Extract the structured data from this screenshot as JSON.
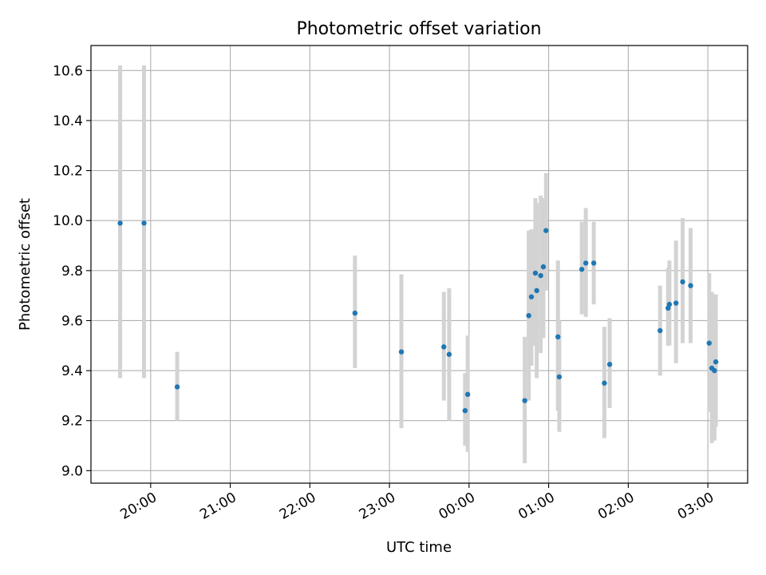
{
  "chart_data": {
    "type": "scatter",
    "title": "Photometric offset variation",
    "xlabel": "UTC time",
    "ylabel": "Photometric offset",
    "x_axis": {
      "type": "time",
      "range": [
        "19:15",
        "03:30"
      ],
      "ticks": [
        "20:00",
        "21:00",
        "22:00",
        "23:00",
        "00:00",
        "01:00",
        "02:00",
        "03:00"
      ]
    },
    "y_axis": {
      "range": [
        8.95,
        10.7
      ],
      "ticks": [
        "9.0",
        "9.2",
        "9.4",
        "9.6",
        "9.8",
        "10.0",
        "10.2",
        "10.4",
        "10.6"
      ]
    },
    "grid": true,
    "marker_color": "#1f77b4",
    "errorbar_color": "#d3d3d3",
    "points": [
      {
        "t": "19:37",
        "y": 9.99,
        "low": 9.37,
        "high": 10.62
      },
      {
        "t": "19:55",
        "y": 9.99,
        "low": 9.37,
        "high": 10.62
      },
      {
        "t": "20:20",
        "y": 9.335,
        "low": 9.2,
        "high": 9.475
      },
      {
        "t": "22:34",
        "y": 9.63,
        "low": 9.41,
        "high": 9.86
      },
      {
        "t": "23:09",
        "y": 9.475,
        "low": 9.17,
        "high": 9.785
      },
      {
        "t": "23:41",
        "y": 9.495,
        "low": 9.28,
        "high": 9.715
      },
      {
        "t": "23:45",
        "y": 9.465,
        "low": 9.2,
        "high": 9.73
      },
      {
        "t": "23:57",
        "y": 9.24,
        "low": 9.1,
        "high": 9.39
      },
      {
        "t": "23:59",
        "y": 9.305,
        "low": 9.075,
        "high": 9.54
      },
      {
        "t": "00:42",
        "y": 9.28,
        "low": 9.03,
        "high": 9.535
      },
      {
        "t": "00:45",
        "y": 9.62,
        "low": 9.28,
        "high": 9.96
      },
      {
        "t": "00:47",
        "y": 9.695,
        "low": 9.42,
        "high": 9.965
      },
      {
        "t": "00:50",
        "y": 9.79,
        "low": 9.5,
        "high": 10.09
      },
      {
        "t": "00:51",
        "y": 9.72,
        "low": 9.37,
        "high": 10.07
      },
      {
        "t": "00:54",
        "y": 9.78,
        "low": 9.47,
        "high": 10.1
      },
      {
        "t": "00:56",
        "y": 9.815,
        "low": 9.53,
        "high": 10.09
      },
      {
        "t": "00:58",
        "y": 9.96,
        "low": 9.72,
        "high": 10.19
      },
      {
        "t": "01:07",
        "y": 9.535,
        "low": 9.24,
        "high": 9.84
      },
      {
        "t": "01:08",
        "y": 9.375,
        "low": 9.155,
        "high": 9.6
      },
      {
        "t": "01:25",
        "y": 9.805,
        "low": 9.625,
        "high": 9.995
      },
      {
        "t": "01:28",
        "y": 9.83,
        "low": 9.615,
        "high": 10.05
      },
      {
        "t": "01:34",
        "y": 9.83,
        "low": 9.665,
        "high": 9.995
      },
      {
        "t": "01:42",
        "y": 9.35,
        "low": 9.13,
        "high": 9.575
      },
      {
        "t": "01:46",
        "y": 9.425,
        "low": 9.25,
        "high": 9.61
      },
      {
        "t": "02:24",
        "y": 9.56,
        "low": 9.38,
        "high": 9.74
      },
      {
        "t": "02:30",
        "y": 9.65,
        "low": 9.5,
        "high": 9.81
      },
      {
        "t": "02:31",
        "y": 9.665,
        "low": 9.5,
        "high": 9.84
      },
      {
        "t": "02:36",
        "y": 9.67,
        "low": 9.43,
        "high": 9.92
      },
      {
        "t": "02:41",
        "y": 9.755,
        "low": 9.51,
        "high": 10.01
      },
      {
        "t": "02:47",
        "y": 9.74,
        "low": 9.51,
        "high": 9.97
      },
      {
        "t": "03:01",
        "y": 9.51,
        "low": 9.235,
        "high": 9.79
      },
      {
        "t": "03:03",
        "y": 9.41,
        "low": 9.11,
        "high": 9.715
      },
      {
        "t": "03:05",
        "y": 9.4,
        "low": 9.12,
        "high": 9.7
      },
      {
        "t": "03:06",
        "y": 9.435,
        "low": 9.175,
        "high": 9.705
      }
    ]
  }
}
